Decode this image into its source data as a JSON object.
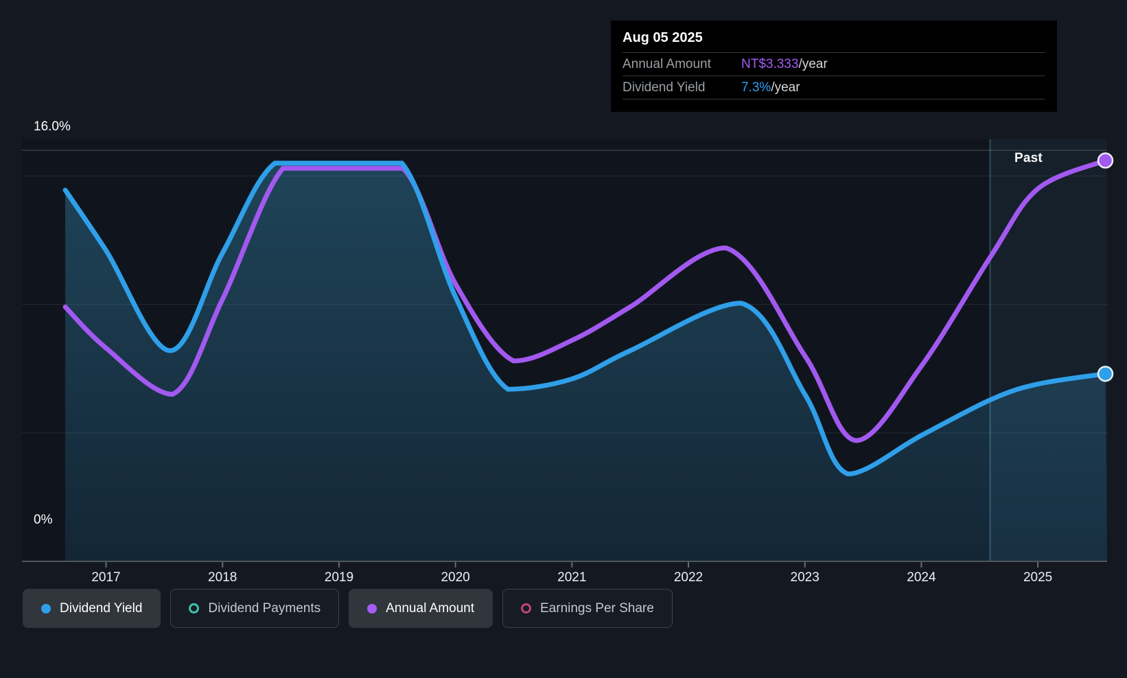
{
  "tooltip": {
    "date": "Aug 05 2025",
    "rows": [
      {
        "label": "Annual Amount",
        "value": "NT$3.333",
        "suffix": "/year"
      },
      {
        "label": "Dividend Yield",
        "value": "7.3%",
        "suffix": "/year"
      }
    ]
  },
  "y_axis": {
    "top_label": "16.0%",
    "bottom_label": "0%"
  },
  "x_axis": {
    "years": [
      "2017",
      "2018",
      "2019",
      "2020",
      "2021",
      "2022",
      "2023",
      "2024",
      "2025"
    ]
  },
  "past_label": "Past",
  "legend": {
    "items": [
      {
        "label": "Dividend Yield",
        "color": "#2f9fe9",
        "filled": true,
        "active": true
      },
      {
        "label": "Dividend Payments",
        "color": "#3fc2ae",
        "filled": false,
        "active": false
      },
      {
        "label": "Annual Amount",
        "color": "#a55cf6",
        "filled": true,
        "active": true
      },
      {
        "label": "Earnings Per Share",
        "color": "#c04380",
        "filled": false,
        "active": false
      }
    ]
  },
  "colors": {
    "background": "#141821",
    "plot_background": "#10151d",
    "dividend_yield_line": "#2f9fe9",
    "annual_amount_line": "#a259f0",
    "tooltip_bg": "#000000",
    "tooltip_value_purple": "#a55cf6",
    "tooltip_value_blue": "#2f9ff2",
    "fill_top": "#1f4459",
    "fill_bottom": "#132635"
  },
  "chart_data": {
    "type": "line",
    "title": "Dividend history chart (yield and annual amount)",
    "x_range_years": [
      2016.65,
      2025.58
    ],
    "y_axis": {
      "unit": "percent (dividend yield axis)",
      "min": 0,
      "max": 16,
      "labeled_ticks": [
        "16.0%",
        "0%"
      ],
      "gridline_values": [
        16,
        15,
        10,
        5,
        0
      ],
      "grid": true
    },
    "past_divider_year": 2024.59,
    "legend_position": "bottom",
    "series": [
      {
        "name": "Dividend Yield",
        "color": "#2f9fe9",
        "unit": "percent",
        "current": {
          "date": "Aug 05 2025",
          "value": "7.3%/year"
        },
        "points": [
          [
            2016.65,
            14.45
          ],
          [
            2017.0,
            12.1
          ],
          [
            2017.55,
            8.2
          ],
          [
            2018.0,
            12.0
          ],
          [
            2018.45,
            15.5
          ],
          [
            2019.0,
            15.5
          ],
          [
            2019.54,
            15.5
          ],
          [
            2020.0,
            10.3
          ],
          [
            2020.45,
            6.7
          ],
          [
            2021.0,
            7.1
          ],
          [
            2021.5,
            8.2
          ],
          [
            2022.45,
            10.05
          ],
          [
            2023.0,
            6.5
          ],
          [
            2023.37,
            3.4
          ],
          [
            2024.0,
            4.9
          ],
          [
            2024.6,
            6.3
          ],
          [
            2025.0,
            6.9
          ],
          [
            2025.58,
            7.3
          ]
        ]
      },
      {
        "name": "Annual Amount",
        "color": "#a259f0",
        "unit": "percent-axis-equivalent (only labeled value: NT$3.333/year at end; approx NT$ = equiv x 0.214)",
        "current": {
          "date": "Aug 05 2025",
          "value": "NT$3.333/year"
        },
        "points": [
          [
            2016.65,
            9.9
          ],
          [
            2017.0,
            8.3
          ],
          [
            2017.57,
            6.5
          ],
          [
            2018.0,
            10.2
          ],
          [
            2018.52,
            15.3
          ],
          [
            2019.0,
            15.3
          ],
          [
            2019.55,
            15.3
          ],
          [
            2020.0,
            10.8
          ],
          [
            2020.5,
            7.8
          ],
          [
            2021.0,
            8.6
          ],
          [
            2021.5,
            9.9
          ],
          [
            2022.32,
            12.2
          ],
          [
            2023.0,
            8.0
          ],
          [
            2023.44,
            4.7
          ],
          [
            2024.0,
            7.6
          ],
          [
            2024.6,
            11.9
          ],
          [
            2025.0,
            14.5
          ],
          [
            2025.58,
            15.6
          ]
        ]
      }
    ]
  }
}
